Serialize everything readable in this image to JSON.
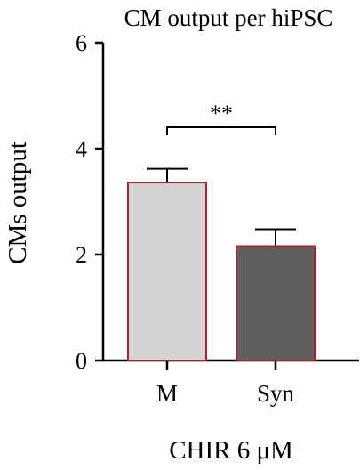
{
  "chart_data": {
    "type": "bar",
    "title": "CM output per hiPSC",
    "xlabel": "CHIR 6 μM",
    "ylabel": "CMs output",
    "categories": [
      "M",
      "Syn"
    ],
    "values": [
      3.36,
      2.16
    ],
    "errors": [
      0.26,
      0.32
    ],
    "ylim": [
      0,
      6
    ],
    "yticks": [
      0,
      2,
      4,
      6
    ],
    "ytick_labels": [
      "0",
      "2",
      "4",
      "6"
    ],
    "grid": false,
    "bar_fill_colors": [
      "#d4d4d4",
      "#5f5f5f"
    ],
    "bar_edge_color": "#a8242c",
    "significance": {
      "between": [
        0,
        1
      ],
      "label": "**"
    }
  }
}
